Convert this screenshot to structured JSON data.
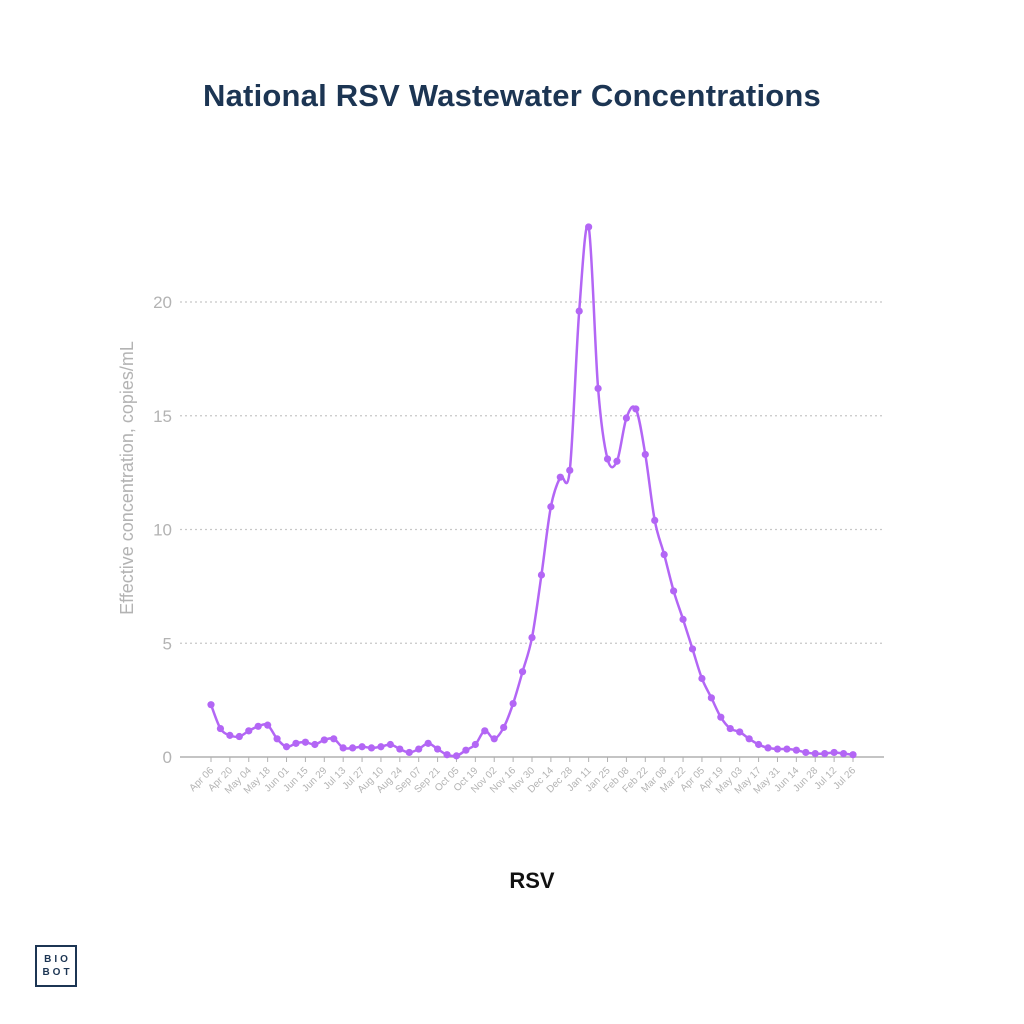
{
  "header": {
    "title": "National RSV Wastewater Concentrations"
  },
  "logo": {
    "line1": "BIO",
    "line2": "BOT"
  },
  "colors": {
    "series": "#b366f5",
    "axis_text": "#b3b3b3",
    "grid": "#c8c8c8",
    "title": "#1c3553"
  },
  "chart_data": {
    "type": "line",
    "title": "National RSV Wastewater Concentrations",
    "xlabel": "RSV",
    "ylabel": "Effective concentration, copies/mL",
    "ylim": [
      0,
      23.5
    ],
    "yticks": [
      0,
      5,
      10,
      15,
      20
    ],
    "grid": "horizontal dotted",
    "x_tick_labels": [
      "Apr 06",
      "Apr 20",
      "May 04",
      "May 18",
      "Jun 01",
      "Jun 15",
      "Jun 29",
      "Jul 13",
      "Jul 27",
      "Aug 10",
      "Aug 24",
      "Sep 07",
      "Sep 21",
      "Oct 05",
      "Oct 19",
      "Nov 02",
      "Nov 16",
      "Nov 30",
      "Dec 14",
      "Dec 28",
      "Jan 11",
      "Jan 25",
      "Feb 08",
      "Feb 22",
      "Mar 08",
      "Mar 22",
      "Apr 05",
      "Apr 19",
      "May 03",
      "May 17",
      "May 31",
      "Jun 14",
      "Jun 28",
      "Jul 12",
      "Jul 26"
    ],
    "series": [
      {
        "values": [
          2.3,
          1.25,
          0.95,
          0.9,
          1.15,
          1.35,
          1.4,
          0.8,
          0.45,
          0.6,
          0.65,
          0.55,
          0.75,
          0.8,
          0.4,
          0.4,
          0.45,
          0.4,
          0.45,
          0.55,
          0.35,
          0.2,
          0.35,
          0.6,
          0.35,
          0.1,
          0.05,
          0.3,
          0.55,
          1.15,
          0.8,
          1.3,
          2.35,
          3.75,
          5.25,
          8.0,
          11.0,
          12.3,
          12.6,
          19.6,
          23.3,
          16.2,
          13.1,
          13.0,
          14.9,
          15.3,
          13.3,
          10.4,
          8.9,
          7.3,
          6.05,
          4.75,
          3.45,
          2.6,
          1.75,
          1.25,
          1.1,
          0.8,
          0.55,
          0.4,
          0.35,
          0.35,
          0.3,
          0.2,
          0.15,
          0.15,
          0.2,
          0.15,
          0.1
        ]
      }
    ]
  }
}
